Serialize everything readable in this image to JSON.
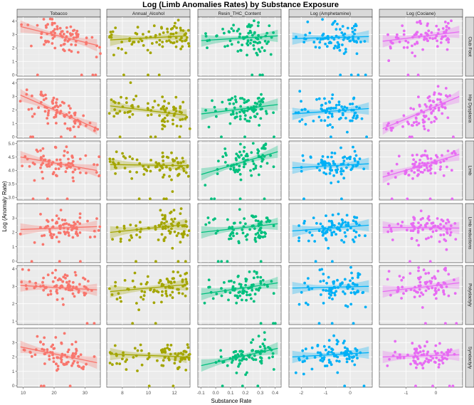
{
  "chart_data": {
    "type": "scatter",
    "title": "Log (Limb Anomalies Rates) by Substance Exposure",
    "xlabel": "Substance Rate",
    "ylabel": "Log (Anomaly Rate)",
    "grid": true,
    "legend": "none",
    "columns": [
      {
        "name": "Tobacco",
        "color": "#F8766D",
        "xlim": [
          8,
          35
        ],
        "ticks": [
          10,
          20,
          30
        ],
        "tick_labels": [
          "10",
          "20",
          "30"
        ]
      },
      {
        "name": "Annual_Alcohol",
        "color": "#A3A500",
        "xlim": [
          6.8,
          13.2
        ],
        "ticks": [
          8,
          10,
          12
        ],
        "tick_labels": [
          "8",
          "10",
          "12"
        ]
      },
      {
        "name": "Resin_THC_Content",
        "color": "#00BF7D",
        "xlim": [
          -0.12,
          0.44
        ],
        "ticks": [
          -0.1,
          0,
          0.1,
          0.2,
          0.3,
          0.4
        ],
        "tick_labels": [
          "-0.1",
          "0.0",
          "0.1",
          "0.2",
          "0.3",
          "0.4"
        ]
      },
      {
        "name": "Log (Amphetamine)",
        "color": "#00B0F6",
        "xlim": [
          -2.5,
          0.9
        ],
        "ticks": [
          -2,
          -1,
          0
        ],
        "tick_labels": [
          "-2",
          "-1",
          "0"
        ]
      },
      {
        "name": "Log (Cociane)",
        "color": "#E76BF3",
        "xlim": [
          -1.9,
          0.9
        ],
        "ticks": [
          -1,
          0
        ],
        "tick_labels": [
          "-1",
          "0"
        ]
      }
    ],
    "rows": [
      {
        "name": "Club Foot",
        "ylim": [
          -0.1,
          4.3
        ],
        "yticks": [
          0,
          1,
          2,
          3,
          4
        ],
        "ytick_labels": [
          "0",
          "1",
          "2",
          "3",
          "4"
        ],
        "trend": [
          [
            3.6,
            2.2
          ],
          [
            2.6,
            2.9
          ],
          [
            2.55,
            2.9
          ],
          [
            2.7,
            2.85
          ],
          [
            2.5,
            3.2
          ]
        ],
        "center": [
          3.0,
          2.8,
          2.7,
          2.75,
          2.8
        ]
      },
      {
        "name": "Hip Dysplasia",
        "ylim": [
          -0.1,
          4.3
        ],
        "yticks": [
          0,
          1,
          2,
          3,
          4
        ],
        "ytick_labels": [
          "0",
          "1",
          "2",
          "3",
          "4"
        ],
        "trend": [
          [
            3.1,
            0.6
          ],
          [
            2.3,
            1.6
          ],
          [
            1.7,
            2.4
          ],
          [
            1.7,
            2.1
          ],
          [
            0.6,
            3.0
          ]
        ],
        "center": [
          2.0,
          1.8,
          1.9,
          2.0,
          1.9
        ]
      },
      {
        "name": "Limb",
        "ylim": [
          2.9,
          5.1
        ],
        "yticks": [
          3,
          3.5,
          4,
          4.5,
          5
        ],
        "ytick_labels": [
          "3.0",
          "3.5",
          "4.0",
          "4.5",
          "5.0"
        ],
        "trend": [
          [
            4.5,
            4.0
          ],
          [
            4.22,
            4.18
          ],
          [
            3.85,
            4.7
          ],
          [
            4.1,
            4.25
          ],
          [
            3.75,
            4.6
          ]
        ],
        "center": [
          4.2,
          4.2,
          4.2,
          4.2,
          4.2
        ]
      },
      {
        "name": "Limb reductions",
        "ylim": [
          -0.1,
          4.0
        ],
        "yticks": [
          0,
          1,
          2,
          3
        ],
        "ytick_labels": [
          "0",
          "1",
          "2",
          "3"
        ],
        "trend": [
          [
            2.2,
            2.4
          ],
          [
            2.0,
            2.55
          ],
          [
            2.0,
            2.6
          ],
          [
            2.1,
            2.5
          ],
          [
            2.35,
            2.3
          ]
        ],
        "center": [
          2.3,
          2.3,
          2.3,
          2.3,
          2.3
        ]
      },
      {
        "name": "Polydactyly",
        "ylim": [
          0.8,
          4.2
        ],
        "yticks": [
          1,
          2,
          3,
          4
        ],
        "ytick_labels": [
          "1",
          "2",
          "3",
          "4"
        ],
        "trend": [
          [
            3.05,
            2.8
          ],
          [
            2.7,
            3.1
          ],
          [
            2.55,
            3.2
          ],
          [
            2.9,
            3.0
          ],
          [
            2.7,
            3.2
          ]
        ],
        "center": [
          2.9,
          2.9,
          2.9,
          2.9,
          2.9
        ]
      },
      {
        "name": "Syndactyly",
        "ylim": [
          -0.1,
          4.0
        ],
        "yticks": [
          0,
          1,
          2,
          3
        ],
        "ytick_labels": [
          "0",
          "1",
          "2",
          "3"
        ],
        "trend": [
          [
            2.7,
            1.6
          ],
          [
            2.2,
            2.0
          ],
          [
            1.4,
            2.6
          ],
          [
            2.0,
            2.3
          ],
          [
            2.0,
            2.15
          ]
        ],
        "center": [
          2.1,
          2.1,
          2.1,
          2.1,
          2.1
        ]
      }
    ]
  }
}
